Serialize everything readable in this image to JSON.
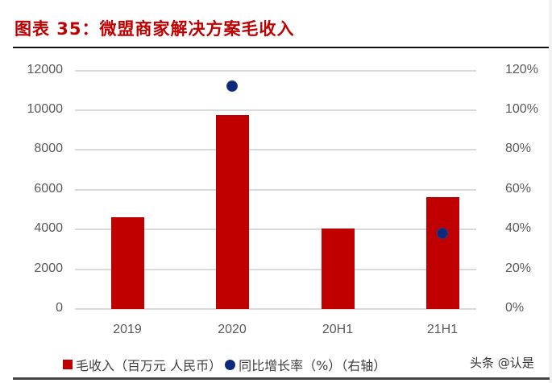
{
  "header": {
    "title": "图表 35：微盟商家解决方案毛收入"
  },
  "axes": {
    "left_ticks": [
      "12000",
      "10000",
      "8000",
      "6000",
      "4000",
      "2000",
      "0"
    ],
    "right_ticks": [
      "120%",
      "100%",
      "80%",
      "60%",
      "40%",
      "20%",
      "0%"
    ],
    "x_ticks": [
      "2019",
      "2020",
      "20H1",
      "21H1"
    ]
  },
  "legend": {
    "series1": "毛收入（百万元 人民币）",
    "series2": "同比增长率（%）（右轴）"
  },
  "watermark": "头条 @认是",
  "colors": {
    "bar": "#c00000",
    "dot": "#0d2a7a",
    "title": "#c00000",
    "grid": "#d9d9d9"
  },
  "chart_data": {
    "type": "bar",
    "title": "图表 35：微盟商家解决方案毛收入",
    "categories": [
      "2019",
      "2020",
      "20H1",
      "21H1"
    ],
    "series": [
      {
        "name": "毛收入（百万元 人民币）",
        "type": "bar",
        "axis": "left",
        "values": [
          4610,
          9750,
          4050,
          5630
        ]
      },
      {
        "name": "同比增长率（%）（右轴）",
        "type": "scatter",
        "axis": "right",
        "values": [
          null,
          112,
          null,
          38
        ]
      }
    ],
    "xlabel": "",
    "ylabel": "",
    "ylim": [
      0,
      12000
    ],
    "y2lim": [
      0,
      120
    ],
    "y2_unit": "%",
    "grid": true,
    "legend_position": "bottom"
  }
}
